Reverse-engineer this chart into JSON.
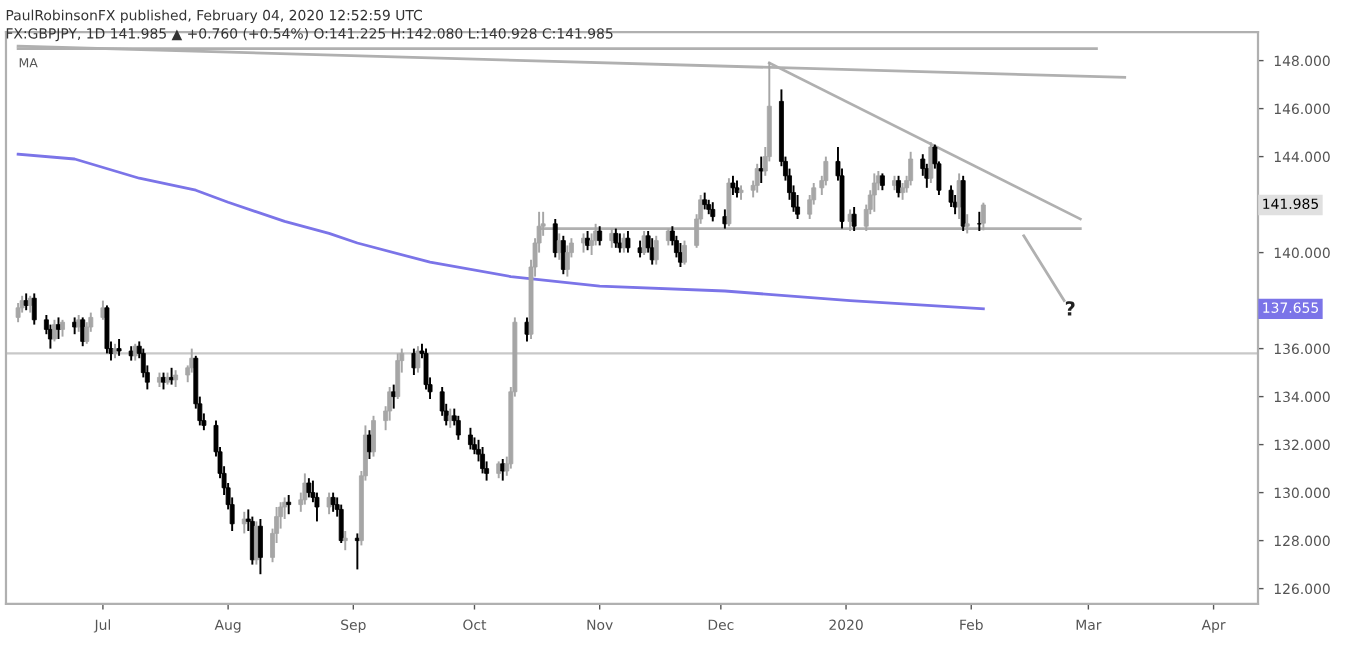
{
  "chart_data": {
    "type": "candlestick",
    "title": "PaulRobinsonFX published, February 04, 2020 12:52:59 UTC",
    "subtitle": "FX:GBPJPY, 1D 141.985 ▲ +0.760 (+0.54%) O:141.225 H:142.080 L:140.928 C:141.985",
    "xlim": [
      "2019-06-07",
      "2020-04-12"
    ],
    "xticks": [
      {
        "value": "2019-07-01",
        "label": "Jul"
      },
      {
        "value": "2019-08-01",
        "label": "Aug"
      },
      {
        "value": "2019-09-01",
        "label": "Sep"
      },
      {
        "value": "2019-10-01",
        "label": "Oct"
      },
      {
        "value": "2019-11-01",
        "label": "Nov"
      },
      {
        "value": "2019-12-01",
        "label": "Dec"
      },
      {
        "value": "2020-01-01",
        "label": "2020"
      },
      {
        "value": "2020-02-01",
        "label": "Feb"
      },
      {
        "value": "2020-03-01",
        "label": "Mar"
      },
      {
        "value": "2020-04-01",
        "label": "Apr"
      }
    ],
    "ylim": [
      125.36,
      149.19
    ],
    "yticks": [
      {
        "value": 126,
        "label": "126.000"
      },
      {
        "value": 128,
        "label": "128.000"
      },
      {
        "value": 130,
        "label": "130.000"
      },
      {
        "value": 132,
        "label": "132.000"
      },
      {
        "value": 134,
        "label": "134.000"
      },
      {
        "value": 136,
        "label": "136.000"
      },
      {
        "value": 138,
        "label": null
      },
      {
        "value": 140,
        "label": "140.000"
      },
      {
        "value": 142,
        "label": null
      },
      {
        "value": 144,
        "label": "144.000"
      },
      {
        "value": 146,
        "label": "146.000"
      },
      {
        "value": 148,
        "label": "148.000"
      }
    ],
    "grid": false,
    "legend": false,
    "series": [
      {
        "x": [
          "2019-06-10",
          "2019-06-11",
          "2019-06-12",
          "2019-06-13",
          "2019-06-14",
          "2019-06-17",
          "2019-06-18",
          "2019-06-19",
          "2019-06-20",
          "2019-06-21",
          "2019-06-24",
          "2019-06-25",
          "2019-06-26",
          "2019-06-27",
          "2019-06-28",
          "2019-07-01",
          "2019-07-02",
          "2019-07-03",
          "2019-07-04",
          "2019-07-05",
          "2019-07-08",
          "2019-07-09",
          "2019-07-10",
          "2019-07-11",
          "2019-07-12",
          "2019-07-15",
          "2019-07-16",
          "2019-07-17",
          "2019-07-18",
          "2019-07-19",
          "2019-07-22",
          "2019-07-23",
          "2019-07-24",
          "2019-07-25",
          "2019-07-26",
          "2019-07-29",
          "2019-07-30",
          "2019-07-31",
          "2019-08-01",
          "2019-08-02",
          "2019-08-05",
          "2019-08-06",
          "2019-08-07",
          "2019-08-08",
          "2019-08-09",
          "2019-08-12",
          "2019-08-13",
          "2019-08-14",
          "2019-08-15",
          "2019-08-16",
          "2019-08-19",
          "2019-08-20",
          "2019-08-21",
          "2019-08-22",
          "2019-08-23",
          "2019-08-26",
          "2019-08-27",
          "2019-08-28",
          "2019-08-29",
          "2019-08-30",
          "2019-09-02",
          "2019-09-03",
          "2019-09-04",
          "2019-09-05",
          "2019-09-06",
          "2019-09-09",
          "2019-09-10",
          "2019-09-11",
          "2019-09-12",
          "2019-09-13",
          "2019-09-16",
          "2019-09-17",
          "2019-09-18",
          "2019-09-19",
          "2019-09-20",
          "2019-09-23",
          "2019-09-24",
          "2019-09-25",
          "2019-09-26",
          "2019-09-27",
          "2019-09-30",
          "2019-10-01",
          "2019-10-02",
          "2019-10-03",
          "2019-10-04",
          "2019-10-07",
          "2019-10-08",
          "2019-10-09",
          "2019-10-10",
          "2019-10-11",
          "2019-10-14",
          "2019-10-15",
          "2019-10-16",
          "2019-10-17",
          "2019-10-18",
          "2019-10-21",
          "2019-10-22",
          "2019-10-23",
          "2019-10-24",
          "2019-10-25",
          "2019-10-28",
          "2019-10-29",
          "2019-10-30",
          "2019-10-31",
          "2019-11-01",
          "2019-11-04",
          "2019-11-05",
          "2019-11-06",
          "2019-11-07",
          "2019-11-08",
          "2019-11-11",
          "2019-11-12",
          "2019-11-13",
          "2019-11-14",
          "2019-11-15",
          "2019-11-18",
          "2019-11-19",
          "2019-11-20",
          "2019-11-21",
          "2019-11-22",
          "2019-11-25",
          "2019-11-26",
          "2019-11-27",
          "2019-11-28",
          "2019-11-29",
          "2019-12-02",
          "2019-12-03",
          "2019-12-04",
          "2019-12-05",
          "2019-12-06",
          "2019-12-09",
          "2019-12-10",
          "2019-12-11",
          "2019-12-12",
          "2019-12-13",
          "2019-12-16",
          "2019-12-17",
          "2019-12-18",
          "2019-12-19",
          "2019-12-20",
          "2019-12-23",
          "2019-12-24",
          "2019-12-26",
          "2019-12-27",
          "2019-12-30",
          "2019-12-31",
          "2020-01-02",
          "2020-01-03",
          "2020-01-06",
          "2020-01-07",
          "2020-01-08",
          "2020-01-09",
          "2020-01-10",
          "2020-01-13",
          "2020-01-14",
          "2020-01-15",
          "2020-01-16",
          "2020-01-17",
          "2020-01-20",
          "2020-01-21",
          "2020-01-22",
          "2020-01-23",
          "2020-01-24",
          "2020-01-27",
          "2020-01-28",
          "2020-01-29",
          "2020-01-30",
          "2020-01-31",
          "2020-02-03",
          "2020-02-04"
        ],
        "ohlc": [
          [
            137.3,
            137.9,
            137.1,
            137.7
          ],
          [
            137.7,
            138.2,
            137.5,
            138.0
          ],
          [
            138.0,
            138.3,
            137.6,
            137.8
          ],
          [
            137.8,
            138.2,
            137.5,
            138.1
          ],
          [
            138.1,
            138.3,
            137.0,
            137.2
          ],
          [
            137.2,
            137.4,
            136.6,
            136.8
          ],
          [
            136.8,
            137.0,
            136.0,
            136.4
          ],
          [
            136.4,
            137.2,
            136.3,
            137.0
          ],
          [
            137.0,
            137.3,
            136.4,
            136.8
          ],
          [
            136.8,
            137.2,
            136.5,
            137.1
          ],
          [
            137.1,
            137.3,
            136.6,
            136.9
          ],
          [
            136.9,
            137.4,
            136.7,
            137.2
          ],
          [
            137.2,
            137.3,
            136.1,
            136.3
          ],
          [
            136.3,
            137.1,
            136.2,
            136.9
          ],
          [
            136.9,
            137.5,
            136.7,
            137.3
          ],
          [
            137.3,
            138.0,
            137.2,
            137.7
          ],
          [
            137.7,
            137.8,
            135.8,
            136.0
          ],
          [
            136.0,
            136.3,
            135.5,
            135.8
          ],
          [
            135.8,
            136.2,
            135.6,
            136.0
          ],
          [
            136.0,
            136.4,
            135.7,
            135.9
          ],
          [
            135.9,
            136.1,
            135.5,
            135.7
          ],
          [
            135.7,
            136.2,
            135.5,
            136.1
          ],
          [
            136.1,
            136.3,
            135.6,
            135.8
          ],
          [
            135.8,
            136.0,
            134.8,
            135.0
          ],
          [
            135.0,
            135.3,
            134.3,
            134.6
          ],
          [
            134.6,
            135.0,
            134.4,
            134.8
          ],
          [
            134.8,
            135.0,
            134.3,
            134.6
          ],
          [
            134.6,
            135.0,
            134.5,
            134.8
          ],
          [
            134.8,
            135.2,
            134.5,
            134.7
          ],
          [
            134.7,
            135.1,
            134.4,
            134.9
          ],
          [
            134.9,
            135.3,
            134.6,
            135.2
          ],
          [
            135.2,
            136.0,
            135.0,
            135.6
          ],
          [
            135.6,
            135.7,
            133.5,
            133.7
          ],
          [
            133.7,
            134.0,
            132.8,
            133.0
          ],
          [
            133.0,
            133.3,
            132.6,
            132.8
          ],
          [
            132.8,
            133.0,
            131.5,
            131.7
          ],
          [
            131.7,
            131.9,
            130.6,
            130.8
          ],
          [
            130.8,
            131.1,
            129.9,
            130.2
          ],
          [
            130.2,
            130.4,
            129.3,
            129.5
          ],
          [
            129.5,
            129.8,
            128.4,
            128.7
          ],
          [
            128.7,
            129.2,
            128.3,
            128.9
          ],
          [
            128.9,
            129.3,
            128.4,
            128.8
          ],
          [
            128.8,
            129.0,
            127.0,
            127.2
          ],
          [
            127.2,
            128.8,
            127.0,
            128.6
          ],
          [
            128.6,
            128.9,
            126.6,
            127.3
          ],
          [
            127.3,
            128.5,
            127.1,
            128.3
          ],
          [
            128.3,
            129.4,
            127.9,
            129.0
          ],
          [
            129.0,
            129.6,
            128.5,
            129.4
          ],
          [
            129.4,
            129.8,
            128.9,
            129.6
          ],
          [
            129.6,
            129.9,
            129.1,
            129.5
          ],
          [
            129.5,
            130.0,
            129.2,
            129.7
          ],
          [
            129.7,
            130.8,
            129.5,
            130.4
          ],
          [
            130.4,
            130.6,
            129.8,
            130.0
          ],
          [
            130.0,
            130.5,
            129.6,
            129.8
          ],
          [
            129.8,
            130.0,
            128.8,
            129.4
          ],
          [
            129.4,
            130.0,
            129.1,
            129.8
          ],
          [
            129.8,
            130.0,
            129.2,
            129.5
          ],
          [
            129.5,
            129.8,
            129.0,
            129.3
          ],
          [
            129.3,
            129.5,
            127.9,
            128.0
          ],
          [
            128.0,
            128.4,
            127.6,
            128.1
          ],
          [
            128.1,
            128.3,
            126.8,
            128.0
          ],
          [
            128.0,
            130.9,
            127.8,
            130.7
          ],
          [
            130.7,
            132.8,
            130.5,
            132.4
          ],
          [
            132.4,
            132.6,
            131.4,
            131.7
          ],
          [
            131.7,
            133.2,
            131.5,
            133.0
          ],
          [
            133.0,
            133.6,
            132.6,
            133.4
          ],
          [
            133.4,
            134.4,
            133.0,
            134.2
          ],
          [
            134.2,
            134.5,
            133.5,
            134.0
          ],
          [
            134.0,
            135.8,
            133.9,
            135.5
          ],
          [
            135.5,
            136.0,
            135.0,
            135.8
          ],
          [
            135.8,
            136.0,
            134.9,
            135.2
          ],
          [
            135.2,
            136.1,
            135.0,
            135.9
          ],
          [
            135.9,
            136.2,
            135.6,
            135.8
          ],
          [
            135.8,
            136.0,
            134.3,
            134.5
          ],
          [
            134.5,
            134.8,
            133.9,
            134.2
          ],
          [
            134.2,
            134.4,
            133.2,
            133.4
          ],
          [
            133.4,
            133.7,
            132.8,
            133.0
          ],
          [
            133.0,
            133.5,
            132.7,
            133.2
          ],
          [
            133.2,
            133.5,
            132.8,
            133.0
          ],
          [
            133.0,
            133.2,
            132.2,
            132.4
          ],
          [
            132.4,
            132.7,
            131.8,
            132.0
          ],
          [
            132.0,
            132.3,
            131.6,
            131.8
          ],
          [
            131.8,
            132.2,
            131.3,
            131.6
          ],
          [
            131.6,
            131.9,
            130.8,
            131.0
          ],
          [
            131.0,
            131.3,
            130.5,
            130.8
          ],
          [
            130.8,
            131.3,
            130.6,
            131.2
          ],
          [
            131.2,
            131.4,
            130.5,
            130.9
          ],
          [
            130.9,
            131.5,
            130.7,
            131.2
          ],
          [
            131.2,
            134.4,
            131.0,
            134.2
          ],
          [
            134.2,
            137.3,
            134.0,
            137.1
          ],
          [
            137.1,
            137.3,
            136.3,
            136.6
          ],
          [
            136.6,
            139.7,
            136.4,
            139.4
          ],
          [
            139.4,
            140.6,
            139.0,
            140.4
          ],
          [
            140.4,
            141.7,
            140.0,
            141.1
          ],
          [
            141.1,
            141.7,
            140.7,
            141.2
          ],
          [
            141.2,
            141.4,
            139.8,
            140.0
          ],
          [
            140.0,
            140.8,
            139.7,
            140.5
          ],
          [
            140.5,
            140.7,
            139.1,
            139.3
          ],
          [
            139.3,
            140.3,
            139.0,
            140.0
          ],
          [
            140.0,
            140.6,
            139.8,
            140.4
          ],
          [
            140.4,
            140.8,
            140.0,
            140.6
          ],
          [
            140.6,
            140.9,
            140.1,
            140.3
          ],
          [
            140.3,
            140.8,
            139.9,
            140.5
          ],
          [
            140.5,
            141.2,
            140.3,
            140.9
          ],
          [
            140.9,
            141.1,
            140.3,
            140.5
          ],
          [
            140.5,
            141.0,
            140.2,
            140.8
          ],
          [
            140.8,
            141.0,
            140.2,
            140.4
          ],
          [
            140.4,
            140.8,
            140.0,
            140.2
          ],
          [
            140.2,
            140.8,
            140.0,
            140.6
          ],
          [
            140.6,
            140.9,
            140.0,
            140.2
          ],
          [
            140.2,
            140.5,
            139.8,
            140.0
          ],
          [
            140.0,
            140.9,
            139.9,
            140.7
          ],
          [
            140.7,
            140.9,
            140.0,
            140.2
          ],
          [
            140.2,
            140.6,
            139.5,
            139.7
          ],
          [
            139.7,
            140.7,
            139.5,
            140.5
          ],
          [
            140.5,
            141.0,
            140.3,
            140.9
          ],
          [
            140.9,
            141.1,
            140.3,
            140.5
          ],
          [
            140.5,
            140.7,
            139.8,
            140.0
          ],
          [
            140.0,
            140.4,
            139.4,
            139.6
          ],
          [
            139.6,
            140.5,
            139.5,
            140.3
          ],
          [
            140.3,
            141.6,
            140.2,
            141.4
          ],
          [
            141.4,
            142.4,
            141.2,
            142.2
          ],
          [
            142.2,
            142.5,
            141.8,
            142.0
          ],
          [
            142.0,
            142.2,
            141.6,
            141.8
          ],
          [
            141.8,
            142.1,
            141.3,
            141.5
          ],
          [
            141.5,
            141.8,
            141.0,
            141.2
          ],
          [
            141.2,
            143.1,
            141.1,
            142.9
          ],
          [
            142.9,
            143.2,
            142.4,
            142.7
          ],
          [
            142.7,
            143.0,
            142.3,
            142.5
          ],
          [
            142.5,
            142.8,
            142.2,
            142.6
          ],
          [
            142.6,
            143.0,
            142.3,
            142.8
          ],
          [
            142.8,
            143.7,
            142.5,
            143.5
          ],
          [
            143.5,
            144.0,
            142.9,
            143.4
          ],
          [
            143.4,
            144.4,
            143.2,
            144.0
          ],
          [
            144.0,
            147.95,
            143.8,
            146.1
          ],
          [
            146.3,
            146.8,
            143.6,
            143.8
          ],
          [
            143.8,
            144.0,
            143.0,
            143.2
          ],
          [
            143.2,
            143.5,
            142.2,
            142.5
          ],
          [
            142.5,
            142.8,
            141.7,
            141.9
          ],
          [
            141.9,
            142.4,
            141.4,
            141.6
          ],
          [
            141.6,
            142.4,
            141.4,
            142.2
          ],
          [
            142.2,
            142.9,
            142.0,
            142.7
          ],
          [
            142.7,
            143.2,
            142.4,
            143.0
          ],
          [
            143.0,
            144.0,
            142.8,
            143.8
          ],
          [
            143.8,
            144.4,
            143.0,
            143.2
          ],
          [
            143.2,
            143.5,
            141.0,
            141.3
          ],
          [
            141.3,
            141.8,
            140.9,
            141.6
          ],
          [
            141.6,
            141.9,
            140.9,
            141.1
          ],
          [
            141.1,
            142.0,
            140.9,
            141.8
          ],
          [
            141.8,
            142.6,
            141.6,
            142.4
          ],
          [
            142.4,
            143.3,
            141.7,
            142.9
          ],
          [
            142.9,
            143.4,
            142.6,
            143.2
          ],
          [
            143.2,
            143.3,
            142.6,
            142.8
          ],
          [
            142.8,
            143.2,
            142.6,
            143.0
          ],
          [
            143.0,
            143.2,
            142.3,
            142.5
          ],
          [
            142.5,
            142.9,
            142.2,
            142.7
          ],
          [
            142.7,
            143.2,
            142.5,
            143.0
          ],
          [
            143.0,
            144.2,
            142.8,
            143.9
          ],
          [
            143.9,
            144.1,
            143.2,
            143.5
          ],
          [
            143.5,
            143.7,
            142.7,
            143.1
          ],
          [
            143.1,
            144.6,
            142.9,
            144.4
          ],
          [
            144.4,
            144.5,
            143.5,
            143.7
          ],
          [
            143.7,
            143.8,
            142.4,
            142.6
          ],
          [
            142.6,
            142.8,
            141.9,
            142.1
          ],
          [
            142.1,
            142.4,
            141.6,
            141.9
          ],
          [
            141.9,
            143.3,
            141.4,
            143.0
          ],
          [
            143.0,
            143.2,
            140.9,
            141.1
          ],
          [
            141.1,
            141.6,
            140.8,
            141.2
          ],
          [
            141.2,
            141.7,
            140.9,
            141.2
          ],
          [
            141.225,
            142.08,
            140.928,
            141.985
          ]
        ],
        "colors": [
          "#a6a6a6",
          "#a6a6a6",
          "#000000",
          "#a6a6a6",
          "#000000",
          "#000000",
          "#000000",
          "#a6a6a6",
          "#000000",
          "#a6a6a6",
          "#000000",
          "#a6a6a6",
          "#000000",
          "#a6a6a6",
          "#a6a6a6",
          "#a6a6a6",
          "#000000",
          "#000000",
          "#a6a6a6",
          "#000000",
          "#000000",
          "#a6a6a6",
          "#000000",
          "#000000",
          "#000000",
          "#a6a6a6",
          "#000000",
          "#a6a6a6",
          "#000000",
          "#a6a6a6",
          "#a6a6a6",
          "#a6a6a6",
          "#000000",
          "#000000",
          "#000000",
          "#000000",
          "#000000",
          "#000000",
          "#000000",
          "#000000",
          "#a6a6a6",
          "#000000",
          "#000000",
          "#a6a6a6",
          "#000000",
          "#a6a6a6",
          "#a6a6a6",
          "#a6a6a6",
          "#a6a6a6",
          "#000000",
          "#a6a6a6",
          "#a6a6a6",
          "#000000",
          "#000000",
          "#000000",
          "#a6a6a6",
          "#000000",
          "#000000",
          "#000000",
          "#a6a6a6",
          "#000000",
          "#a6a6a6",
          "#a6a6a6",
          "#000000",
          "#a6a6a6",
          "#a6a6a6",
          "#a6a6a6",
          "#000000",
          "#a6a6a6",
          "#a6a6a6",
          "#000000",
          "#a6a6a6",
          "#000000",
          "#000000",
          "#000000",
          "#000000",
          "#000000",
          "#a6a6a6",
          "#000000",
          "#000000",
          "#000000",
          "#000000",
          "#000000",
          "#000000",
          "#000000",
          "#a6a6a6",
          "#000000",
          "#a6a6a6",
          "#a6a6a6",
          "#a6a6a6",
          "#000000",
          "#a6a6a6",
          "#a6a6a6",
          "#a6a6a6",
          "#a6a6a6",
          "#000000",
          "#a6a6a6",
          "#000000",
          "#a6a6a6",
          "#a6a6a6",
          "#a6a6a6",
          "#000000",
          "#a6a6a6",
          "#a6a6a6",
          "#000000",
          "#a6a6a6",
          "#000000",
          "#000000",
          "#a6a6a6",
          "#000000",
          "#000000",
          "#a6a6a6",
          "#000000",
          "#000000",
          "#a6a6a6",
          "#a6a6a6",
          "#000000",
          "#000000",
          "#000000",
          "#a6a6a6",
          "#a6a6a6",
          "#a6a6a6",
          "#000000",
          "#000000",
          "#000000",
          "#000000",
          "#a6a6a6",
          "#000000",
          "#000000",
          "#a6a6a6",
          "#a6a6a6",
          "#a6a6a6",
          "#000000",
          "#a6a6a6",
          "#a6a6a6",
          "#000000",
          "#000000",
          "#000000",
          "#000000",
          "#000000",
          "#a6a6a6",
          "#a6a6a6",
          "#a6a6a6",
          "#a6a6a6",
          "#000000",
          "#000000",
          "#a6a6a6",
          "#000000",
          "#a6a6a6",
          "#a6a6a6",
          "#a6a6a6",
          "#a6a6a6",
          "#000000",
          "#a6a6a6",
          "#000000",
          "#a6a6a6",
          "#a6a6a6",
          "#a6a6a6",
          "#000000",
          "#000000",
          "#a6a6a6",
          "#000000",
          "#000000",
          "#000000",
          "#000000",
          "#a6a6a6",
          "#000000",
          "#a6a6a6",
          "#000000",
          "#a6a6a6"
        ]
      },
      {
        "type": "line",
        "color": "#7b74e8",
        "x": [
          "2019-06-10",
          "2019-06-24",
          "2019-07-10",
          "2019-07-24",
          "2019-08-01",
          "2019-08-15",
          "2019-08-26",
          "2019-09-02",
          "2019-09-20",
          "2019-10-10",
          "2019-11-01",
          "2019-12-02",
          "2020-01-02",
          "2020-02-04"
        ],
        "values": [
          144.1,
          143.9,
          143.1,
          142.6,
          142.1,
          141.3,
          140.8,
          140.4,
          139.6,
          139.0,
          138.6,
          138.4,
          138.0,
          137.655
        ]
      },
      {
        "type": "line",
        "color": "#b0b0b0",
        "x": [
          "2019-06-10",
          "2020-03-03"
        ],
        "values": [
          148.5,
          148.5
        ]
      },
      {
        "type": "line",
        "color": "#b0b0b0",
        "x": [
          "2019-06-10",
          "2020-03-10"
        ],
        "values": [
          148.6,
          147.3
        ]
      },
      {
        "type": "line",
        "color": "#b0b0b0",
        "x": [
          "2019-12-13",
          "2020-02-28"
        ],
        "values": [
          147.9,
          141.4
        ]
      },
      {
        "type": "line",
        "color": "#b0b0b0",
        "x": [
          "2019-10-17",
          "2020-02-28"
        ],
        "values": [
          141.0,
          141.0
        ]
      },
      {
        "type": "line",
        "color": "#b0b0b0",
        "x": [
          "2020-02-14",
          "2020-02-24"
        ],
        "values": [
          140.7,
          138.0
        ]
      }
    ],
    "ref_lines": [
      {
        "axis": "y",
        "value": 135.8,
        "color": "#c8c8c8"
      }
    ],
    "annotations": [
      "MA",
      "?",
      "141.985",
      "137.655"
    ]
  }
}
